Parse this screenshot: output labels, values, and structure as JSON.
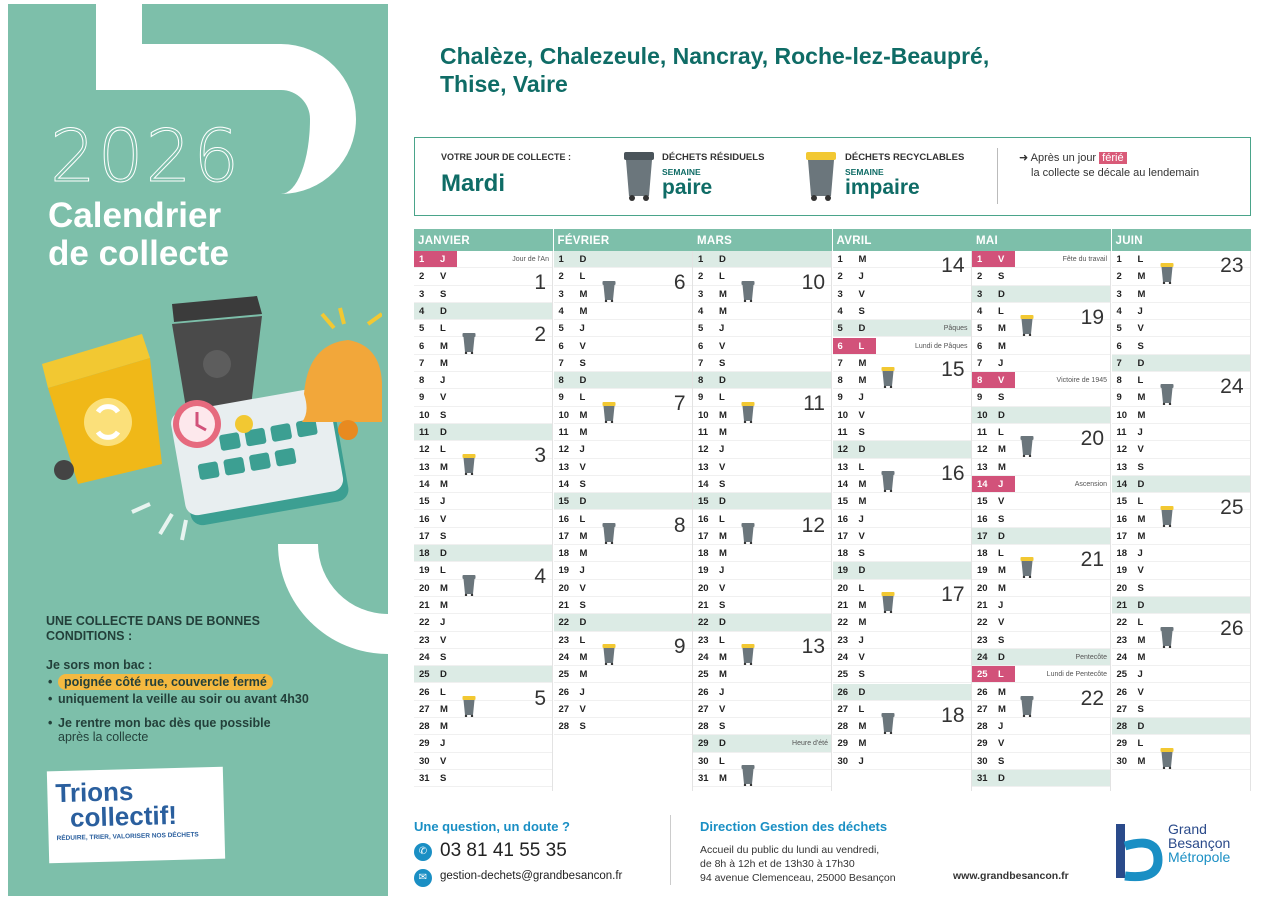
{
  "left": {
    "year": "2026",
    "title_line1": "Calendrier",
    "title_line2": "de collecte",
    "conditions_title": "Une collecte dans de bonnes conditions :",
    "intro": "Je sors mon bac :",
    "items": [
      "poignée côté rue, couvercle fermé",
      "uniquement la veille au soir ou avant 4h30"
    ],
    "return_line1": "Je rentre mon bac dès que possible",
    "return_line2": "après la collecte",
    "logo_line1": "Trions",
    "logo_line2": "collectif!",
    "logo_tagline": "RÉDUIRE, TRIER, VALORISER NOS DÉCHETS"
  },
  "header": {
    "communes_line1": "Chalèze, Chalezeule, Nancray, Roche-lez-Beaupré,",
    "communes_line2": "Thise, Vaire"
  },
  "info": {
    "your_day_label": "VOTRE JOUR DE COLLECTE :",
    "your_day": "Mardi",
    "residual_label": "DÉCHETS RÉSIDUELS",
    "residual_week_label": "SEMAINE",
    "residual_week": "paire",
    "recyclable_label": "DÉCHETS RECYCLABLES",
    "recyclable_week_label": "SEMAINE",
    "recyclable_week": "impaire",
    "ferie_before": "Après un jour",
    "ferie_word": "férié",
    "ferie_line2": "la collecte se décale au lendemain",
    "colors": {
      "accent": "#0f6c66",
      "header": "#7dbfaa",
      "holiday": "#d2527a",
      "residual_bin": "#5f6a70",
      "recyclable_bin": "#f2c832"
    }
  },
  "calendar": {
    "months": [
      {
        "name": "JANVIER",
        "days": [
          [
            "1",
            "J"
          ],
          [
            "2",
            "V"
          ],
          [
            "3",
            "S"
          ],
          [
            "4",
            "D"
          ],
          [
            "5",
            "L"
          ],
          [
            "6",
            "M"
          ],
          [
            "7",
            "M"
          ],
          [
            "8",
            "J"
          ],
          [
            "9",
            "V"
          ],
          [
            "10",
            "S"
          ],
          [
            "11",
            "D"
          ],
          [
            "12",
            "L"
          ],
          [
            "13",
            "M"
          ],
          [
            "14",
            "M"
          ],
          [
            "15",
            "J"
          ],
          [
            "16",
            "V"
          ],
          [
            "17",
            "S"
          ],
          [
            "18",
            "D"
          ],
          [
            "19",
            "L"
          ],
          [
            "20",
            "M"
          ],
          [
            "21",
            "M"
          ],
          [
            "22",
            "J"
          ],
          [
            "23",
            "V"
          ],
          [
            "24",
            "S"
          ],
          [
            "25",
            "D"
          ],
          [
            "26",
            "L"
          ],
          [
            "27",
            "M"
          ],
          [
            "28",
            "M"
          ],
          [
            "29",
            "J"
          ],
          [
            "30",
            "V"
          ],
          [
            "31",
            "S"
          ]
        ],
        "holidays": [
          {
            "day": 1,
            "label": "Jour de l'An"
          }
        ],
        "weeks": [
          {
            "row": 2,
            "n": "1"
          },
          {
            "row": 5,
            "n": "2"
          },
          {
            "row": 12,
            "n": "3"
          },
          {
            "row": 19,
            "n": "4"
          },
          {
            "row": 26,
            "n": "5"
          }
        ],
        "bins": [
          {
            "row": 6,
            "type": "res"
          },
          {
            "row": 13,
            "type": "rec"
          },
          {
            "row": 20,
            "type": "res"
          },
          {
            "row": 27,
            "type": "rec"
          }
        ]
      },
      {
        "name": "FÉVRIER",
        "days": [
          [
            "1",
            "D"
          ],
          [
            "2",
            "L"
          ],
          [
            "3",
            "M"
          ],
          [
            "4",
            "M"
          ],
          [
            "5",
            "J"
          ],
          [
            "6",
            "V"
          ],
          [
            "7",
            "S"
          ],
          [
            "8",
            "D"
          ],
          [
            "9",
            "L"
          ],
          [
            "10",
            "M"
          ],
          [
            "11",
            "M"
          ],
          [
            "12",
            "J"
          ],
          [
            "13",
            "V"
          ],
          [
            "14",
            "S"
          ],
          [
            "15",
            "D"
          ],
          [
            "16",
            "L"
          ],
          [
            "17",
            "M"
          ],
          [
            "18",
            "M"
          ],
          [
            "19",
            "J"
          ],
          [
            "20",
            "V"
          ],
          [
            "21",
            "S"
          ],
          [
            "22",
            "D"
          ],
          [
            "23",
            "L"
          ],
          [
            "24",
            "M"
          ],
          [
            "25",
            "M"
          ],
          [
            "26",
            "J"
          ],
          [
            "27",
            "V"
          ],
          [
            "28",
            "S"
          ]
        ],
        "holidays": [],
        "weeks": [
          {
            "row": 2,
            "n": "6"
          },
          {
            "row": 9,
            "n": "7"
          },
          {
            "row": 16,
            "n": "8"
          },
          {
            "row": 23,
            "n": "9"
          }
        ],
        "bins": [
          {
            "row": 3,
            "type": "res"
          },
          {
            "row": 10,
            "type": "rec"
          },
          {
            "row": 17,
            "type": "res"
          },
          {
            "row": 24,
            "type": "rec"
          }
        ]
      },
      {
        "name": "MARS",
        "days": [
          [
            "1",
            "D"
          ],
          [
            "2",
            "L"
          ],
          [
            "3",
            "M"
          ],
          [
            "4",
            "M"
          ],
          [
            "5",
            "J"
          ],
          [
            "6",
            "V"
          ],
          [
            "7",
            "S"
          ],
          [
            "8",
            "D"
          ],
          [
            "9",
            "L"
          ],
          [
            "10",
            "M"
          ],
          [
            "11",
            "M"
          ],
          [
            "12",
            "J"
          ],
          [
            "13",
            "V"
          ],
          [
            "14",
            "S"
          ],
          [
            "15",
            "D"
          ],
          [
            "16",
            "L"
          ],
          [
            "17",
            "M"
          ],
          [
            "18",
            "M"
          ],
          [
            "19",
            "J"
          ],
          [
            "20",
            "V"
          ],
          [
            "21",
            "S"
          ],
          [
            "22",
            "D"
          ],
          [
            "23",
            "L"
          ],
          [
            "24",
            "M"
          ],
          [
            "25",
            "M"
          ],
          [
            "26",
            "J"
          ],
          [
            "27",
            "V"
          ],
          [
            "28",
            "S"
          ],
          [
            "29",
            "D"
          ],
          [
            "30",
            "L"
          ],
          [
            "31",
            "M"
          ]
        ],
        "holidays": [],
        "labels": [
          {
            "day": 29,
            "label": "Heure d'été"
          }
        ],
        "weeks": [
          {
            "row": 2,
            "n": "10"
          },
          {
            "row": 9,
            "n": "11"
          },
          {
            "row": 16,
            "n": "12"
          },
          {
            "row": 23,
            "n": "13"
          }
        ],
        "bins": [
          {
            "row": 3,
            "type": "res"
          },
          {
            "row": 10,
            "type": "rec"
          },
          {
            "row": 17,
            "type": "res"
          },
          {
            "row": 24,
            "type": "rec"
          },
          {
            "row": 31,
            "type": "res"
          }
        ]
      },
      {
        "name": "AVRIL",
        "days": [
          [
            "1",
            "M"
          ],
          [
            "2",
            "J"
          ],
          [
            "3",
            "V"
          ],
          [
            "4",
            "S"
          ],
          [
            "5",
            "D"
          ],
          [
            "6",
            "L"
          ],
          [
            "7",
            "M"
          ],
          [
            "8",
            "M"
          ],
          [
            "9",
            "J"
          ],
          [
            "10",
            "V"
          ],
          [
            "11",
            "S"
          ],
          [
            "12",
            "D"
          ],
          [
            "13",
            "L"
          ],
          [
            "14",
            "M"
          ],
          [
            "15",
            "M"
          ],
          [
            "16",
            "J"
          ],
          [
            "17",
            "V"
          ],
          [
            "18",
            "S"
          ],
          [
            "19",
            "D"
          ],
          [
            "20",
            "L"
          ],
          [
            "21",
            "M"
          ],
          [
            "22",
            "M"
          ],
          [
            "23",
            "J"
          ],
          [
            "24",
            "V"
          ],
          [
            "25",
            "S"
          ],
          [
            "26",
            "D"
          ],
          [
            "27",
            "L"
          ],
          [
            "28",
            "M"
          ],
          [
            "29",
            "M"
          ],
          [
            "30",
            "J"
          ]
        ],
        "holidays": [
          {
            "day": 6,
            "label": "Lundi de Pâques"
          }
        ],
        "labels": [
          {
            "day": 5,
            "label": "Pâques"
          }
        ],
        "weeks": [
          {
            "row": 1,
            "n": "14"
          },
          {
            "row": 7,
            "n": "15"
          },
          {
            "row": 13,
            "n": "16"
          },
          {
            "row": 20,
            "n": "17"
          },
          {
            "row": 27,
            "n": "18"
          }
        ],
        "bins": [
          {
            "row": 8,
            "type": "rec"
          },
          {
            "row": 14,
            "type": "res"
          },
          {
            "row": 21,
            "type": "rec"
          },
          {
            "row": 28,
            "type": "res"
          }
        ]
      },
      {
        "name": "MAI",
        "days": [
          [
            "1",
            "V"
          ],
          [
            "2",
            "S"
          ],
          [
            "3",
            "D"
          ],
          [
            "4",
            "L"
          ],
          [
            "5",
            "M"
          ],
          [
            "6",
            "M"
          ],
          [
            "7",
            "J"
          ],
          [
            "8",
            "V"
          ],
          [
            "9",
            "S"
          ],
          [
            "10",
            "D"
          ],
          [
            "11",
            "L"
          ],
          [
            "12",
            "M"
          ],
          [
            "13",
            "M"
          ],
          [
            "14",
            "J"
          ],
          [
            "15",
            "V"
          ],
          [
            "16",
            "S"
          ],
          [
            "17",
            "D"
          ],
          [
            "18",
            "L"
          ],
          [
            "19",
            "M"
          ],
          [
            "20",
            "M"
          ],
          [
            "21",
            "J"
          ],
          [
            "22",
            "V"
          ],
          [
            "23",
            "S"
          ],
          [
            "24",
            "D"
          ],
          [
            "25",
            "L"
          ],
          [
            "26",
            "M"
          ],
          [
            "27",
            "M"
          ],
          [
            "28",
            "J"
          ],
          [
            "29",
            "V"
          ],
          [
            "30",
            "S"
          ],
          [
            "31",
            "D"
          ]
        ],
        "holidays": [
          {
            "day": 1,
            "label": "Fête du travail"
          },
          {
            "day": 8,
            "label": "Victoire de 1945"
          },
          {
            "day": 14,
            "label": "Ascension"
          },
          {
            "day": 25,
            "label": "Lundi de Pentecôte"
          }
        ],
        "labels": [
          {
            "day": 24,
            "label": "Pentecôte"
          }
        ],
        "weeks": [
          {
            "row": 4,
            "n": "19"
          },
          {
            "row": 11,
            "n": "20"
          },
          {
            "row": 18,
            "n": "21"
          },
          {
            "row": 26,
            "n": "22"
          }
        ],
        "bins": [
          {
            "row": 5,
            "type": "rec"
          },
          {
            "row": 12,
            "type": "res"
          },
          {
            "row": 19,
            "type": "rec"
          },
          {
            "row": 27,
            "type": "res"
          }
        ]
      },
      {
        "name": "JUIN",
        "days": [
          [
            "1",
            "L"
          ],
          [
            "2",
            "M"
          ],
          [
            "3",
            "M"
          ],
          [
            "4",
            "J"
          ],
          [
            "5",
            "V"
          ],
          [
            "6",
            "S"
          ],
          [
            "7",
            "D"
          ],
          [
            "8",
            "L"
          ],
          [
            "9",
            "M"
          ],
          [
            "10",
            "M"
          ],
          [
            "11",
            "J"
          ],
          [
            "12",
            "V"
          ],
          [
            "13",
            "S"
          ],
          [
            "14",
            "D"
          ],
          [
            "15",
            "L"
          ],
          [
            "16",
            "M"
          ],
          [
            "17",
            "M"
          ],
          [
            "18",
            "J"
          ],
          [
            "19",
            "V"
          ],
          [
            "20",
            "S"
          ],
          [
            "21",
            "D"
          ],
          [
            "22",
            "L"
          ],
          [
            "23",
            "M"
          ],
          [
            "24",
            "M"
          ],
          [
            "25",
            "J"
          ],
          [
            "26",
            "V"
          ],
          [
            "27",
            "S"
          ],
          [
            "28",
            "D"
          ],
          [
            "29",
            "L"
          ],
          [
            "30",
            "M"
          ]
        ],
        "holidays": [],
        "weeks": [
          {
            "row": 1,
            "n": "23"
          },
          {
            "row": 8,
            "n": "24"
          },
          {
            "row": 15,
            "n": "25"
          },
          {
            "row": 22,
            "n": "26"
          }
        ],
        "bins": [
          {
            "row": 2,
            "type": "rec"
          },
          {
            "row": 9,
            "type": "res"
          },
          {
            "row": 16,
            "type": "rec"
          },
          {
            "row": 23,
            "type": "res"
          },
          {
            "row": 30,
            "type": "rec"
          }
        ]
      }
    ]
  },
  "footer": {
    "question": "Une question, un doute ?",
    "phone": "03 81 41 55 35",
    "email": "gestion-dechets@grandbesancon.fr",
    "direction": "Direction Gestion des déchets",
    "addr_line1": "Accueil du public du lundi au vendredi,",
    "addr_line2": "de 8h à 12h et de 13h30 à 17h30",
    "addr_line3": "94 avenue Clemenceau, 25000 Besançon",
    "website": "www.grandbesancon.fr",
    "logo_line1": "Grand",
    "logo_line2": "Besançon",
    "logo_line3": "Métropole"
  }
}
